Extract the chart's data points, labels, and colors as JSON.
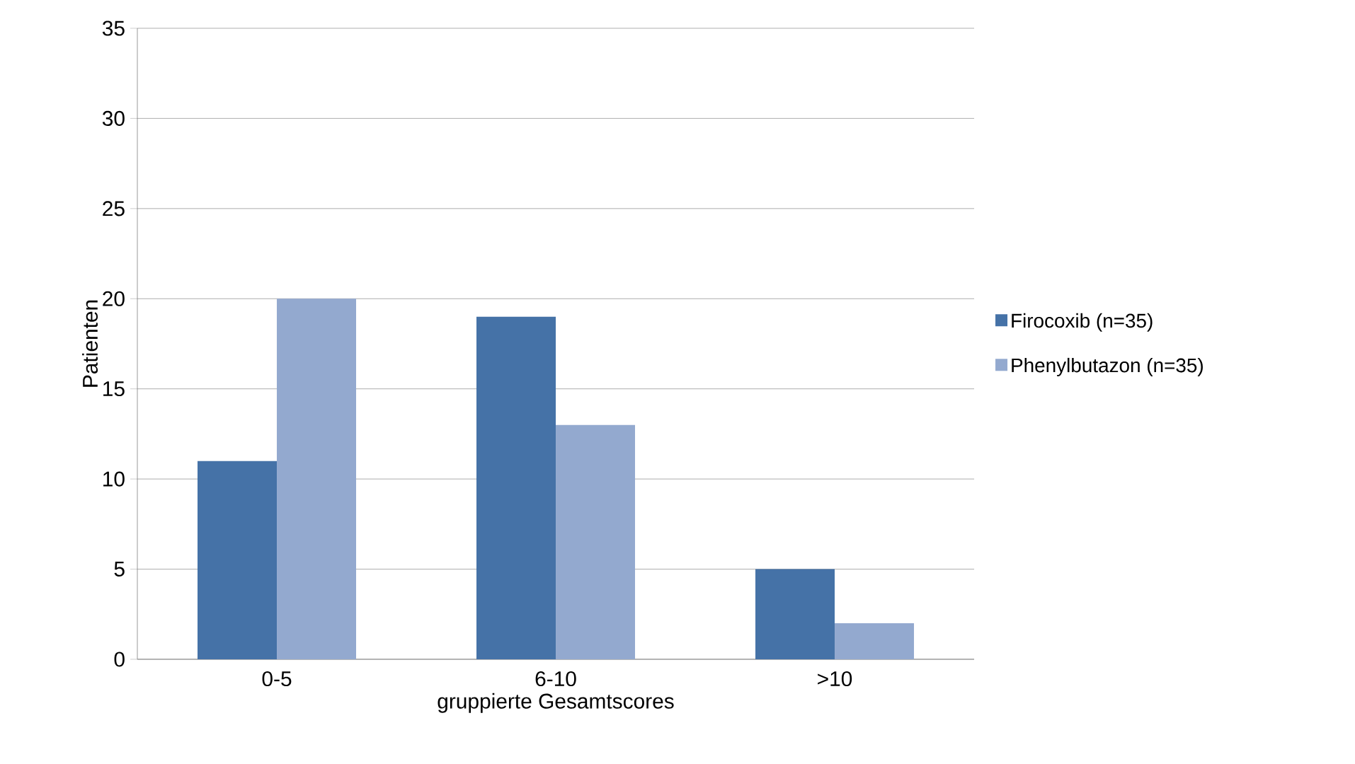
{
  "chart_data": {
    "type": "bar",
    "xlabel": "gruppierte Gesamtscores",
    "ylabel": "Patienten",
    "categories": [
      "0-5",
      "6-10",
      ">10"
    ],
    "series": [
      {
        "name": "Firocoxib (n=35)",
        "color": "#4572a7",
        "values": [
          11,
          19,
          5
        ]
      },
      {
        "name": "Phenylbutazon (n=35)",
        "color": "#93a9cf",
        "values": [
          20,
          13,
          2
        ]
      }
    ],
    "ylim": [
      0,
      35
    ],
    "yticks": [
      0,
      5,
      10,
      15,
      20,
      25,
      30,
      35
    ],
    "grid": "y",
    "legend": "right"
  }
}
